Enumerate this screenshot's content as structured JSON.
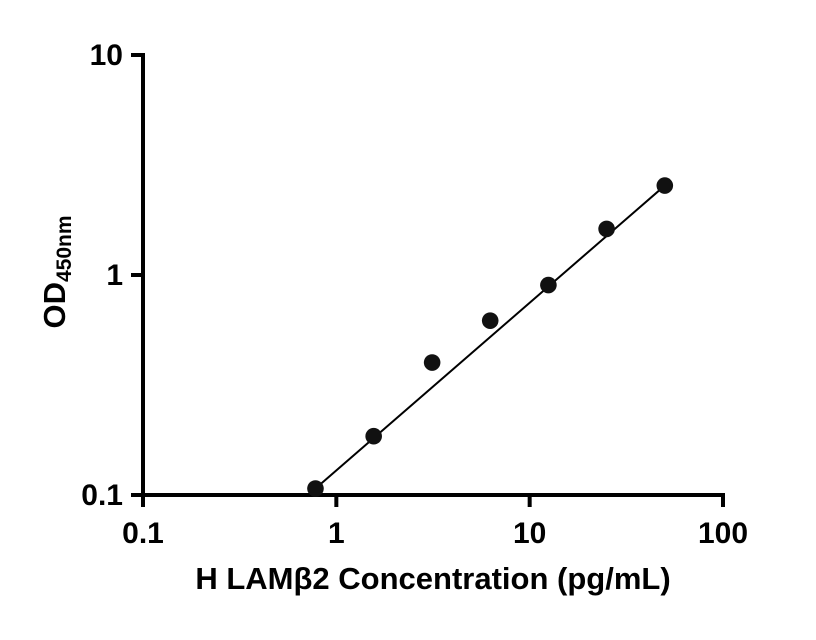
{
  "chart_data": {
    "type": "scatter",
    "title": "",
    "xlabel": "H LAMβ2 Concentration (pg/mL)",
    "ylabel_main": "OD",
    "ylabel_sub": "450nm",
    "x_scale": "log",
    "y_scale": "log",
    "xlim": [
      0.1,
      100
    ],
    "ylim": [
      0.1,
      10
    ],
    "grid": false,
    "legend": "none",
    "x": [
      0.78,
      1.56,
      3.13,
      6.25,
      12.5,
      25,
      50
    ],
    "y": [
      0.107,
      0.185,
      0.4,
      0.62,
      0.9,
      1.62,
      2.55
    ],
    "x_ticks": {
      "values": [
        0.1,
        1,
        10,
        100
      ],
      "labels": [
        "0.1",
        "1",
        "10",
        "100"
      ]
    },
    "y_ticks": {
      "values": [
        0.1,
        1,
        10
      ],
      "labels": [
        "0.1",
        "1",
        "10"
      ]
    },
    "trend_line": "straight-segment-through-endpoints",
    "marker_color": "#111111",
    "line_color": "#000000",
    "axis_color": "#000000"
  }
}
